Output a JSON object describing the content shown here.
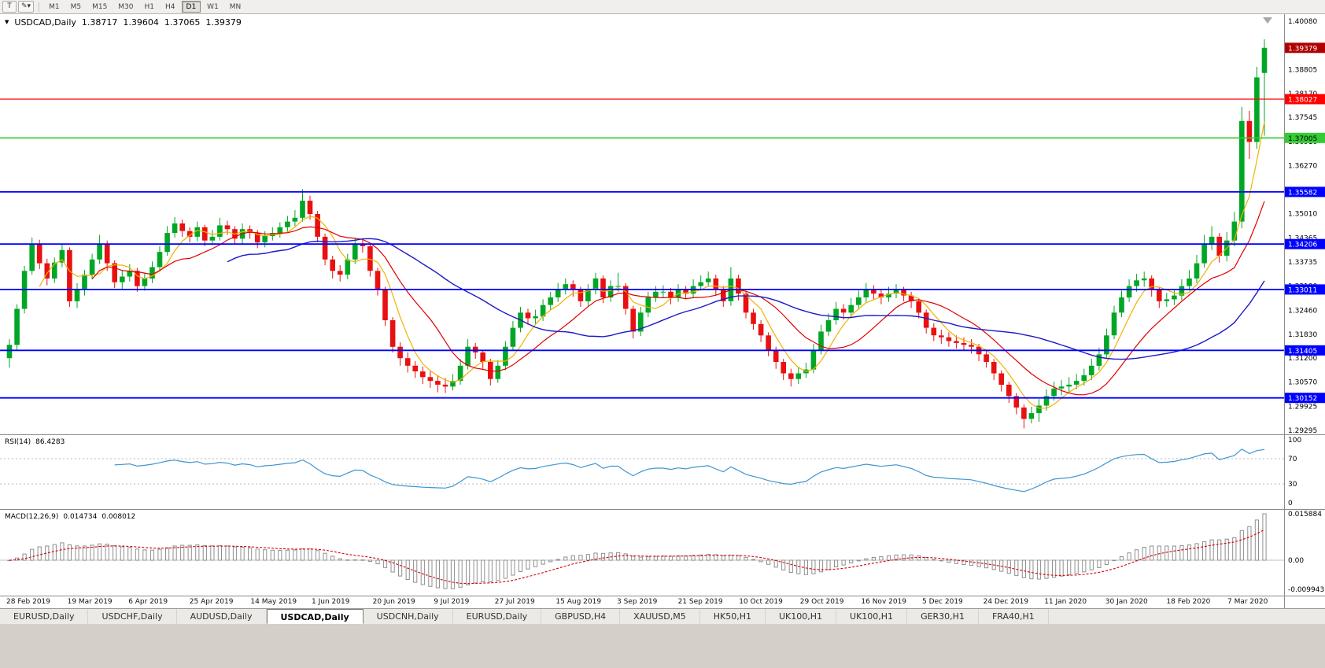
{
  "toolbar": {
    "text_tool_label": "T",
    "draw_tool_icon": "✎",
    "caret_icon": "▾",
    "timeframes": [
      "M1",
      "M5",
      "M15",
      "M30",
      "H1",
      "H4",
      "D1",
      "W1",
      "MN"
    ],
    "active_timeframe": "D1"
  },
  "header": {
    "collapse_icon": "▼",
    "symbol": "USDCAD,Daily",
    "open": "1.38717",
    "high": "1.39604",
    "low": "1.37065",
    "close": "1.39379"
  },
  "rsi_panel_label": {
    "name": "RSI(14)",
    "value": "86.4283"
  },
  "macd_panel_label": {
    "name": "MACD(12,26,9)",
    "main": "0.014734",
    "signal": "0.008012"
  },
  "tabs": [
    {
      "label": "EURUSD,Daily",
      "active": false
    },
    {
      "label": "USDCHF,Daily",
      "active": false
    },
    {
      "label": "AUDUSD,Daily",
      "active": false
    },
    {
      "label": "USDCAD,Daily",
      "active": true
    },
    {
      "label": "USDCNH,Daily",
      "active": false
    },
    {
      "label": "EURUSD,Daily",
      "active": false
    },
    {
      "label": "GBPUSD,H4",
      "active": false
    },
    {
      "label": "XAUUSD,M5",
      "active": false
    },
    {
      "label": "HK50,H1",
      "active": false
    },
    {
      "label": "UK100,H1",
      "active": false
    },
    {
      "label": "UK100,H1",
      "active": false
    },
    {
      "label": "GER30,H1",
      "active": false
    },
    {
      "label": "FRA40,H1",
      "active": false
    }
  ],
  "chart_data": {
    "type": "candlestick",
    "symbol": "USDCAD",
    "timeframe": "Daily",
    "last_ohlc": {
      "open": 1.38717,
      "high": 1.39604,
      "low": 1.37065,
      "close": 1.39379
    },
    "price_range": [
      1.29192,
      1.40267
    ],
    "price_axis_labels": [
      "1.40080",
      "1.39440",
      "1.38805",
      "1.38170",
      "1.37545",
      "1.36910",
      "1.36270",
      "1.35640",
      "1.35010",
      "1.34365",
      "1.33735",
      "1.33100",
      "1.32460",
      "1.31830",
      "1.31200",
      "1.30570",
      "1.29925",
      "1.29295"
    ],
    "dates": [
      "28 Feb 2019",
      "19 Mar 2019",
      "6 Apr 2019",
      "25 Apr 2019",
      "14 May 2019",
      "1 Jun 2019",
      "20 Jun 2019",
      "9 Jul 2019",
      "27 Jul 2019",
      "15 Aug 2019",
      "3 Sep 2019",
      "21 Sep 2019",
      "10 Oct 2019",
      "29 Oct 2019",
      "16 Nov 2019",
      "5 Dec 2019",
      "24 Dec 2019",
      "11 Jan 2020",
      "30 Jan 2020",
      "18 Feb 2020",
      "7 Mar 2020"
    ],
    "levels": [
      {
        "price": 1.38027,
        "label": "1.38027",
        "color": "#ff0000",
        "width": 1.2,
        "text_color": "#ffffff"
      },
      {
        "price": 1.37005,
        "label": "1.37005",
        "color": "#33cc33",
        "width": 1.6,
        "text_color": "#000000"
      },
      {
        "price": 1.35582,
        "label": "1.35582",
        "color": "#0000ff",
        "width": 1.8,
        "text_color": "#ffffff"
      },
      {
        "price": 1.34206,
        "label": "1.34206",
        "color": "#0000ff",
        "width": 1.8,
        "text_color": "#ffffff"
      },
      {
        "price": 1.33011,
        "label": "1.33011",
        "color": "#0000ff",
        "width": 1.8,
        "text_color": "#ffffff"
      },
      {
        "price": 1.31405,
        "label": "1.31405",
        "color": "#0000ff",
        "width": 1.8,
        "text_color": "#ffffff"
      },
      {
        "price": 1.30152,
        "label": "1.30152",
        "color": "#0000ff",
        "width": 1.8,
        "text_color": "#ffffff"
      }
    ],
    "current_price": {
      "price": 1.39379,
      "label": "1.39379",
      "bg": "#b00000",
      "text_color": "#ffffff"
    },
    "ma_periods": {
      "fast": 5,
      "mid": 12,
      "slow": 30
    },
    "colors": {
      "up": "#00a625",
      "down": "#e81010",
      "ma_fast": "#efb300",
      "ma_mid": "#e00000",
      "ma_slow": "#1a1ac8"
    },
    "indicators": {
      "rsi": {
        "period": 14,
        "current": 86.4283,
        "axis": [
          "100",
          "70",
          "30",
          "0"
        ],
        "level_lines": [
          70,
          30
        ],
        "line_color": "#3e95d1"
      },
      "macd": {
        "fast": 12,
        "slow": 26,
        "signal": 9,
        "current_main": 0.014734,
        "current_signal": 0.008012,
        "axis_max": 0.015884,
        "axis_min": -0.009943,
        "axis_max_label": "0.015884",
        "axis_zero_label": "0.00",
        "axis_min_label": "-0.009943"
      }
    },
    "candles": [
      [
        1.312,
        1.317,
        1.3095,
        1.3155
      ],
      [
        1.3155,
        1.3262,
        1.314,
        1.325
      ],
      [
        1.325,
        1.3363,
        1.3238,
        1.335
      ],
      [
        1.335,
        1.3438,
        1.334,
        1.342
      ],
      [
        1.342,
        1.3432,
        1.3355,
        1.337
      ],
      [
        1.337,
        1.3382,
        1.3312,
        1.333
      ],
      [
        1.333,
        1.3385,
        1.3318,
        1.3372
      ],
      [
        1.3372,
        1.3422,
        1.336,
        1.3405
      ],
      [
        1.3405,
        1.3412,
        1.3255,
        1.327
      ],
      [
        1.327,
        1.3318,
        1.3252,
        1.33
      ],
      [
        1.33,
        1.3352,
        1.3285,
        1.334
      ],
      [
        1.334,
        1.3395,
        1.3328,
        1.338
      ],
      [
        1.338,
        1.3445,
        1.3368,
        1.342
      ],
      [
        1.342,
        1.343,
        1.335,
        1.337
      ],
      [
        1.337,
        1.3378,
        1.3305,
        1.332
      ],
      [
        1.332,
        1.3352,
        1.33,
        1.3335
      ],
      [
        1.3335,
        1.3368,
        1.3322,
        1.335
      ],
      [
        1.335,
        1.3358,
        1.3295,
        1.331
      ],
      [
        1.331,
        1.3345,
        1.3298,
        1.333
      ],
      [
        1.333,
        1.3375,
        1.3318,
        1.336
      ],
      [
        1.336,
        1.3415,
        1.3348,
        1.34
      ],
      [
        1.34,
        1.3468,
        1.339,
        1.345
      ],
      [
        1.345,
        1.3492,
        1.3438,
        1.3475
      ],
      [
        1.3475,
        1.3485,
        1.344,
        1.3455
      ],
      [
        1.3455,
        1.3465,
        1.3425,
        1.344
      ],
      [
        1.344,
        1.348,
        1.3428,
        1.3465
      ],
      [
        1.3465,
        1.3472,
        1.3415,
        1.343
      ],
      [
        1.343,
        1.3458,
        1.3418,
        1.344
      ],
      [
        1.344,
        1.349,
        1.343,
        1.347
      ],
      [
        1.347,
        1.3482,
        1.3445,
        1.346
      ],
      [
        1.346,
        1.3468,
        1.342,
        1.3435
      ],
      [
        1.3435,
        1.3475,
        1.3422,
        1.346
      ],
      [
        1.346,
        1.347,
        1.3435,
        1.345
      ],
      [
        1.345,
        1.3458,
        1.341,
        1.3425
      ],
      [
        1.3425,
        1.3455,
        1.3412,
        1.3442
      ],
      [
        1.3442,
        1.3465,
        1.343,
        1.345
      ],
      [
        1.345,
        1.3478,
        1.3438,
        1.3465
      ],
      [
        1.3465,
        1.3495,
        1.3452,
        1.348
      ],
      [
        1.348,
        1.351,
        1.3468,
        1.349
      ],
      [
        1.349,
        1.3565,
        1.348,
        1.3535
      ],
      [
        1.3535,
        1.3548,
        1.3485,
        1.35
      ],
      [
        1.35,
        1.3508,
        1.3425,
        1.344
      ],
      [
        1.344,
        1.3448,
        1.3365,
        1.338
      ],
      [
        1.338,
        1.339,
        1.333,
        1.335
      ],
      [
        1.335,
        1.3365,
        1.3322,
        1.334
      ],
      [
        1.334,
        1.3395,
        1.3328,
        1.338
      ],
      [
        1.338,
        1.3435,
        1.3368,
        1.342
      ],
      [
        1.342,
        1.3432,
        1.3398,
        1.3415
      ],
      [
        1.3415,
        1.3422,
        1.3335,
        1.335
      ],
      [
        1.335,
        1.3358,
        1.3285,
        1.33
      ],
      [
        1.33,
        1.3308,
        1.3205,
        1.322
      ],
      [
        1.322,
        1.3228,
        1.3135,
        1.315
      ],
      [
        1.315,
        1.3162,
        1.31,
        1.312
      ],
      [
        1.312,
        1.3135,
        1.3082,
        1.31
      ],
      [
        1.31,
        1.3112,
        1.3068,
        1.3085
      ],
      [
        1.3085,
        1.3098,
        1.3052,
        1.307
      ],
      [
        1.307,
        1.3085,
        1.3042,
        1.306
      ],
      [
        1.306,
        1.3075,
        1.303,
        1.305
      ],
      [
        1.305,
        1.3068,
        1.3028,
        1.3045
      ],
      [
        1.3045,
        1.3078,
        1.3035,
        1.306
      ],
      [
        1.306,
        1.3118,
        1.305,
        1.31
      ],
      [
        1.31,
        1.317,
        1.309,
        1.315
      ],
      [
        1.315,
        1.316,
        1.3118,
        1.3135
      ],
      [
        1.3135,
        1.3142,
        1.3092,
        1.311
      ],
      [
        1.311,
        1.3118,
        1.3048,
        1.3065
      ],
      [
        1.3065,
        1.3115,
        1.3055,
        1.31
      ],
      [
        1.31,
        1.3165,
        1.3088,
        1.315
      ],
      [
        1.315,
        1.3218,
        1.314,
        1.32
      ],
      [
        1.32,
        1.3255,
        1.3188,
        1.324
      ],
      [
        1.324,
        1.325,
        1.3208,
        1.3225
      ],
      [
        1.3225,
        1.3248,
        1.321,
        1.323
      ],
      [
        1.323,
        1.3275,
        1.3218,
        1.326
      ],
      [
        1.326,
        1.3295,
        1.3248,
        1.328
      ],
      [
        1.328,
        1.3318,
        1.3268,
        1.33
      ],
      [
        1.33,
        1.333,
        1.3288,
        1.3315
      ],
      [
        1.3315,
        1.3325,
        1.3282,
        1.33
      ],
      [
        1.33,
        1.3308,
        1.3255,
        1.327
      ],
      [
        1.327,
        1.3315,
        1.3258,
        1.33
      ],
      [
        1.33,
        1.3345,
        1.3288,
        1.333
      ],
      [
        1.333,
        1.3338,
        1.3265,
        1.328
      ],
      [
        1.328,
        1.3325,
        1.3268,
        1.331
      ],
      [
        1.331,
        1.3345,
        1.3295,
        1.331
      ],
      [
        1.331,
        1.3318,
        1.3235,
        1.325
      ],
      [
        1.325,
        1.3258,
        1.3172,
        1.319
      ],
      [
        1.319,
        1.3255,
        1.3178,
        1.324
      ],
      [
        1.324,
        1.3295,
        1.3228,
        1.328
      ],
      [
        1.328,
        1.331,
        1.3268,
        1.3295
      ],
      [
        1.3295,
        1.3312,
        1.3278,
        1.3295
      ],
      [
        1.3295,
        1.3305,
        1.3262,
        1.328
      ],
      [
        1.328,
        1.3315,
        1.3268,
        1.33
      ],
      [
        1.33,
        1.331,
        1.3275,
        1.329
      ],
      [
        1.329,
        1.3328,
        1.3278,
        1.331
      ],
      [
        1.331,
        1.3338,
        1.3298,
        1.332
      ],
      [
        1.332,
        1.3348,
        1.3308,
        1.333
      ],
      [
        1.333,
        1.334,
        1.3285,
        1.33
      ],
      [
        1.33,
        1.331,
        1.3255,
        1.327
      ],
      [
        1.327,
        1.336,
        1.3258,
        1.333
      ],
      [
        1.333,
        1.334,
        1.3272,
        1.329
      ],
      [
        1.329,
        1.3298,
        1.3225,
        1.324
      ],
      [
        1.324,
        1.325,
        1.3195,
        1.321
      ],
      [
        1.321,
        1.322,
        1.3162,
        1.318
      ],
      [
        1.318,
        1.3188,
        1.3125,
        1.314
      ],
      [
        1.314,
        1.315,
        1.3092,
        1.311
      ],
      [
        1.311,
        1.3118,
        1.3062,
        1.308
      ],
      [
        1.308,
        1.3092,
        1.3045,
        1.3065
      ],
      [
        1.3065,
        1.3098,
        1.3052,
        1.308
      ],
      [
        1.308,
        1.3108,
        1.3068,
        1.309
      ],
      [
        1.309,
        1.3158,
        1.308,
        1.314
      ],
      [
        1.314,
        1.3208,
        1.313,
        1.319
      ],
      [
        1.319,
        1.3238,
        1.3178,
        1.322
      ],
      [
        1.322,
        1.3268,
        1.3208,
        1.325
      ],
      [
        1.325,
        1.3262,
        1.3222,
        1.324
      ],
      [
        1.324,
        1.3278,
        1.3228,
        1.326
      ],
      [
        1.326,
        1.3298,
        1.3248,
        1.328
      ],
      [
        1.328,
        1.3318,
        1.3268,
        1.33
      ],
      [
        1.33,
        1.3312,
        1.3275,
        1.329
      ],
      [
        1.329,
        1.3302,
        1.3262,
        1.328
      ],
      [
        1.328,
        1.3308,
        1.3268,
        1.329
      ],
      [
        1.329,
        1.3315,
        1.3278,
        1.33
      ],
      [
        1.33,
        1.3308,
        1.327,
        1.3285
      ],
      [
        1.3285,
        1.3295,
        1.3252,
        1.327
      ],
      [
        1.327,
        1.3278,
        1.3225,
        1.324
      ],
      [
        1.324,
        1.3248,
        1.3185,
        1.32
      ],
      [
        1.32,
        1.3212,
        1.3165,
        1.318
      ],
      [
        1.318,
        1.3195,
        1.3158,
        1.3175
      ],
      [
        1.3175,
        1.3188,
        1.315,
        1.3165
      ],
      [
        1.3165,
        1.318,
        1.3145,
        1.316
      ],
      [
        1.316,
        1.3175,
        1.314,
        1.3155
      ],
      [
        1.3155,
        1.317,
        1.3132,
        1.315
      ],
      [
        1.315,
        1.3158,
        1.3112,
        1.313
      ],
      [
        1.313,
        1.314,
        1.3095,
        1.311
      ],
      [
        1.311,
        1.3118,
        1.3062,
        1.308
      ],
      [
        1.308,
        1.3088,
        1.3032,
        1.305
      ],
      [
        1.305,
        1.3058,
        1.3002,
        1.302
      ],
      [
        1.302,
        1.3028,
        1.2972,
        1.299
      ],
      [
        1.299,
        1.2998,
        1.2935,
        1.296
      ],
      [
        1.296,
        1.2992,
        1.2948,
        1.2975
      ],
      [
        1.2975,
        1.3012,
        1.2952,
        1.2995
      ],
      [
        1.2995,
        1.3038,
        1.2982,
        1.302
      ],
      [
        1.302,
        1.3058,
        1.3008,
        1.304
      ],
      [
        1.304,
        1.3062,
        1.3022,
        1.3045
      ],
      [
        1.3045,
        1.307,
        1.303,
        1.305
      ],
      [
        1.305,
        1.3078,
        1.3038,
        1.306
      ],
      [
        1.306,
        1.3092,
        1.3048,
        1.3075
      ],
      [
        1.3075,
        1.3118,
        1.3062,
        1.31
      ],
      [
        1.31,
        1.3148,
        1.3088,
        1.313
      ],
      [
        1.313,
        1.3198,
        1.312,
        1.318
      ],
      [
        1.318,
        1.3258,
        1.317,
        1.324
      ],
      [
        1.324,
        1.3298,
        1.3228,
        1.328
      ],
      [
        1.328,
        1.3328,
        1.3268,
        1.331
      ],
      [
        1.331,
        1.3342,
        1.3295,
        1.3325
      ],
      [
        1.3325,
        1.3348,
        1.3308,
        1.333
      ],
      [
        1.333,
        1.3338,
        1.3282,
        1.33
      ],
      [
        1.33,
        1.3308,
        1.3252,
        1.327
      ],
      [
        1.327,
        1.3292,
        1.3255,
        1.3275
      ],
      [
        1.3275,
        1.3302,
        1.326,
        1.3285
      ],
      [
        1.3285,
        1.3328,
        1.3272,
        1.331
      ],
      [
        1.331,
        1.3352,
        1.3298,
        1.333
      ],
      [
        1.333,
        1.3392,
        1.3318,
        1.337
      ],
      [
        1.337,
        1.3445,
        1.3358,
        1.342
      ],
      [
        1.342,
        1.3468,
        1.3405,
        1.344
      ],
      [
        1.344,
        1.345,
        1.3372,
        1.339
      ],
      [
        1.339,
        1.3452,
        1.3375,
        1.343
      ],
      [
        1.343,
        1.3505,
        1.3415,
        1.348
      ],
      [
        1.348,
        1.3782,
        1.3462,
        1.3745
      ],
      [
        1.3745,
        1.3772,
        1.3645,
        1.369
      ],
      [
        1.369,
        1.3888,
        1.3672,
        1.386
      ],
      [
        1.38717,
        1.39604,
        1.37065,
        1.39379
      ]
    ]
  }
}
